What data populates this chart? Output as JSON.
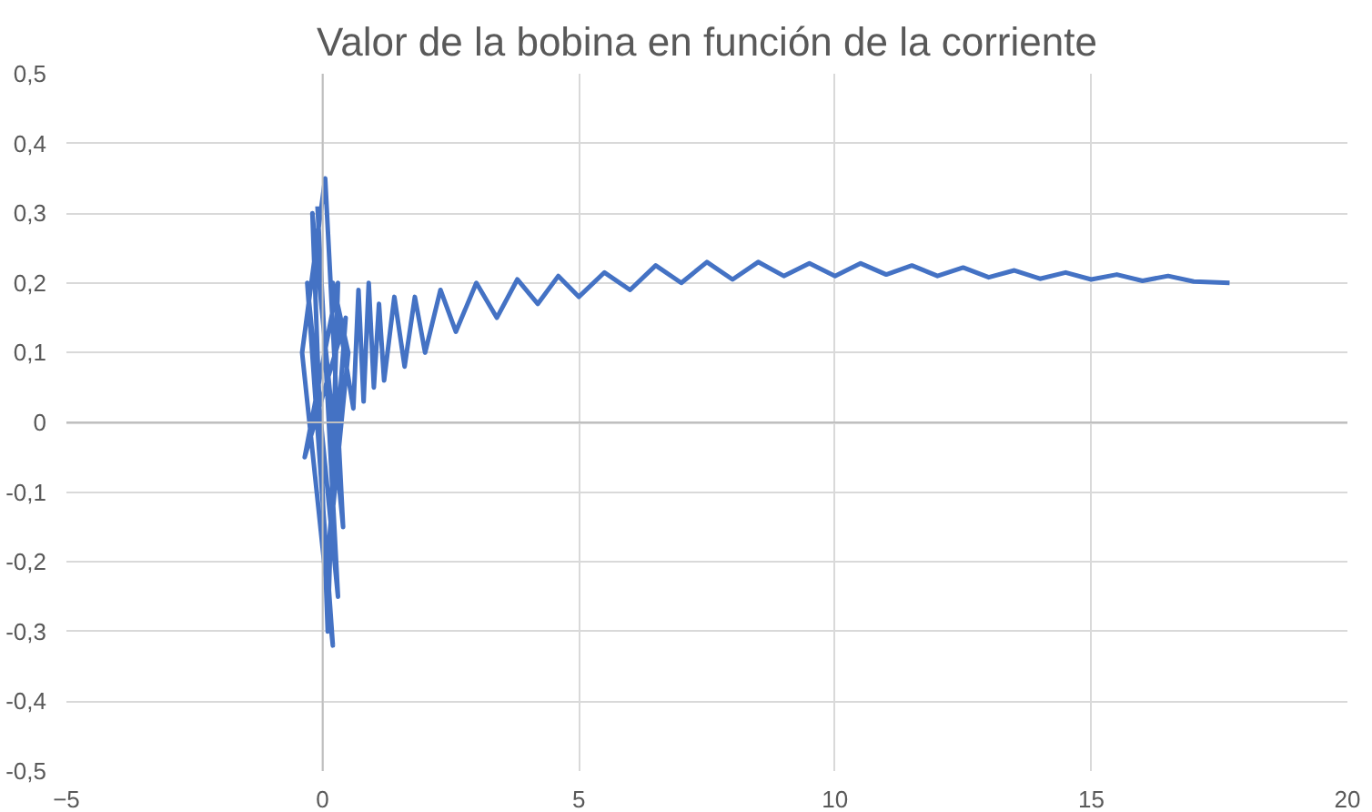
{
  "chart_data": {
    "type": "line",
    "title": "Valor de la bobina en función de la corriente",
    "x": [
      -0.1,
      0.3,
      -0.3,
      0.2,
      -0.4,
      0.05,
      0.4,
      -0.2,
      0.1,
      0.3,
      -0.35,
      0.45,
      0.1,
      0.5,
      0.2,
      0.6,
      0.7,
      0.8,
      0.9,
      1.0,
      1.1,
      1.2,
      1.4,
      1.6,
      1.8,
      2.0,
      2.3,
      2.6,
      3.0,
      3.4,
      3.8,
      4.2,
      4.6,
      5.0,
      5.5,
      6.0,
      6.5,
      7.0,
      7.5,
      8.0,
      8.5,
      9.0,
      9.5,
      10,
      10.5,
      11,
      11.5,
      12,
      12.5,
      13,
      13.5,
      14,
      14.5,
      15,
      15.5,
      16,
      16.5,
      17,
      17.7
    ],
    "series": [
      {
        "color": "#4472c4",
        "values": [
          0.31,
          -0.25,
          0.2,
          -0.32,
          0.1,
          0.35,
          -0.15,
          0.3,
          -0.3,
          0.2,
          -0.05,
          0.15,
          -0.2,
          0.1,
          0.2,
          0.02,
          0.19,
          0.03,
          0.2,
          0.05,
          0.17,
          0.06,
          0.18,
          0.08,
          0.18,
          0.1,
          0.19,
          0.13,
          0.2,
          0.15,
          0.205,
          0.17,
          0.21,
          0.18,
          0.215,
          0.19,
          0.225,
          0.2,
          0.23,
          0.205,
          0.23,
          0.21,
          0.228,
          0.21,
          0.228,
          0.212,
          0.225,
          0.21,
          0.222,
          0.208,
          0.218,
          0.206,
          0.215,
          0.205,
          0.212,
          0.203,
          0.21,
          0.202,
          0.2
        ]
      }
    ],
    "xlim": [
      -5,
      20
    ],
    "xticks": [
      -5,
      0,
      5,
      10,
      15,
      20
    ],
    "ylim": [
      -0.5,
      0.5
    ],
    "yticks": [
      {
        "value": -0.5,
        "label": "-0,5"
      },
      {
        "value": -0.4,
        "label": "-0,4"
      },
      {
        "value": -0.3,
        "label": "-0,3"
      },
      {
        "value": -0.2,
        "label": "-0,2"
      },
      {
        "value": -0.1,
        "label": "-0,1"
      },
      0,
      {
        "value": 0.1,
        "label": "0,1"
      },
      {
        "value": 0.2,
        "label": "0,2"
      },
      {
        "value": 0.3,
        "label": "0,3"
      },
      {
        "value": 0.4,
        "label": "0,4"
      },
      {
        "value": 0.5,
        "label": "0,5"
      }
    ],
    "grid": true,
    "line_style": "solid",
    "marker": "none"
  }
}
